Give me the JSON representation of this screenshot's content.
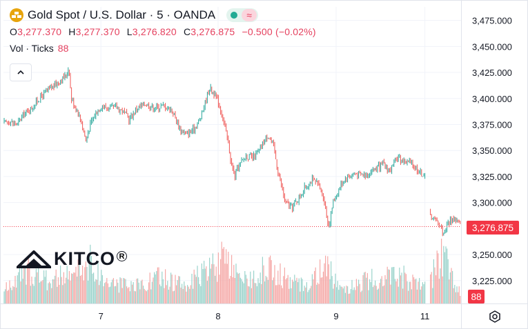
{
  "header": {
    "title": "Gold Spot / U.S. Dollar · 5 · OANDA",
    "ohlc": [
      {
        "key": "O",
        "value": "3,277.370"
      },
      {
        "key": "H",
        "value": "3,277.370"
      },
      {
        "key": "L",
        "value": "3,276.820"
      },
      {
        "key": "C",
        "value": "3,276.875"
      }
    ],
    "change": "−0.500 (−0.02%)",
    "volume_label": "Vol · Ticks",
    "volume_value": "88"
  },
  "watermark": {
    "text": "KITCO",
    "mark": "R"
  },
  "colors": {
    "up": "#26a69a",
    "down": "#ef5350",
    "last_price_tag": "#f23645",
    "gold_icon": "#e7a40d"
  },
  "icons": [
    "gold-bars-icon",
    "market-open-dot-icon",
    "wave-icon",
    "chevron-up-icon",
    "settings-icon"
  ],
  "chart_data": {
    "type": "line",
    "title": "Gold Spot / U.S. Dollar · 5 · OANDA",
    "style": "candlestick with tick-volume histogram",
    "xlabel": "",
    "ylabel": "",
    "ylim": [
      3203,
      3488
    ],
    "y_ticks": [
      "3,475.000",
      "3,450.000",
      "3,425.000",
      "3,400.000",
      "3,375.000",
      "3,350.000",
      "3,325.000",
      "3,300.000",
      "3,250.000",
      "3,225.000"
    ],
    "y_tick_values": [
      3475,
      3450,
      3425,
      3400,
      3375,
      3350,
      3325,
      3300,
      3250,
      3225
    ],
    "x_ticks": [
      {
        "label": "7",
        "pos": 0.213
      },
      {
        "label": "8",
        "pos": 0.469
      },
      {
        "label": "9",
        "pos": 0.727
      },
      {
        "label": "11",
        "pos": 0.921
      }
    ],
    "last_price": 3276.875,
    "last_price_label": "3,276.875",
    "last_volume_label": "88",
    "grid": true,
    "price_path": [
      [
        0.0,
        3376
      ],
      [
        0.015,
        3378
      ],
      [
        0.03,
        3375
      ],
      [
        0.045,
        3385
      ],
      [
        0.06,
        3390
      ],
      [
        0.075,
        3398
      ],
      [
        0.09,
        3405
      ],
      [
        0.105,
        3410
      ],
      [
        0.12,
        3416
      ],
      [
        0.135,
        3421
      ],
      [
        0.143,
        3430
      ],
      [
        0.148,
        3400
      ],
      [
        0.16,
        3390
      ],
      [
        0.17,
        3378
      ],
      [
        0.18,
        3360
      ],
      [
        0.19,
        3375
      ],
      [
        0.2,
        3385
      ],
      [
        0.215,
        3393
      ],
      [
        0.23,
        3390
      ],
      [
        0.245,
        3392
      ],
      [
        0.26,
        3388
      ],
      [
        0.275,
        3380
      ],
      [
        0.29,
        3390
      ],
      [
        0.31,
        3395
      ],
      [
        0.33,
        3391
      ],
      [
        0.35,
        3393
      ],
      [
        0.37,
        3388
      ],
      [
        0.385,
        3371
      ],
      [
        0.4,
        3366
      ],
      [
        0.415,
        3370
      ],
      [
        0.43,
        3380
      ],
      [
        0.44,
        3395
      ],
      [
        0.45,
        3410
      ],
      [
        0.46,
        3405
      ],
      [
        0.47,
        3396
      ],
      [
        0.48,
        3380
      ],
      [
        0.49,
        3360
      ],
      [
        0.497,
        3340
      ],
      [
        0.505,
        3325
      ],
      [
        0.515,
        3335
      ],
      [
        0.53,
        3345
      ],
      [
        0.545,
        3343
      ],
      [
        0.56,
        3350
      ],
      [
        0.57,
        3360
      ],
      [
        0.578,
        3365
      ],
      [
        0.59,
        3355
      ],
      [
        0.6,
        3330
      ],
      [
        0.608,
        3315
      ],
      [
        0.616,
        3300
      ],
      [
        0.63,
        3295
      ],
      [
        0.645,
        3304
      ],
      [
        0.66,
        3315
      ],
      [
        0.675,
        3322
      ],
      [
        0.688,
        3317
      ],
      [
        0.7,
        3305
      ],
      [
        0.707,
        3285
      ],
      [
        0.712,
        3278
      ],
      [
        0.72,
        3300
      ],
      [
        0.735,
        3315
      ],
      [
        0.75,
        3325
      ],
      [
        0.77,
        3328
      ],
      [
        0.79,
        3326
      ],
      [
        0.81,
        3332
      ],
      [
        0.83,
        3337
      ],
      [
        0.845,
        3330
      ],
      [
        0.86,
        3343
      ],
      [
        0.875,
        3340
      ],
      [
        0.89,
        3338
      ],
      [
        0.9,
        3334
      ],
      [
        0.91,
        3329
      ],
      [
        0.92,
        3326
      ],
      [
        0.933,
        3288
      ],
      [
        0.945,
        3283
      ],
      [
        0.955,
        3278
      ],
      [
        0.962,
        3270
      ],
      [
        0.97,
        3280
      ],
      [
        0.985,
        3285
      ],
      [
        1.0,
        3277
      ]
    ],
    "gap_after_index": 70,
    "volume_profile": [
      [
        0.0,
        0.25
      ],
      [
        0.06,
        0.65
      ],
      [
        0.09,
        0.45
      ],
      [
        0.15,
        0.55
      ],
      [
        0.19,
        0.8
      ],
      [
        0.22,
        0.45
      ],
      [
        0.28,
        0.3
      ],
      [
        0.34,
        0.5
      ],
      [
        0.4,
        0.35
      ],
      [
        0.44,
        0.6
      ],
      [
        0.48,
        0.85
      ],
      [
        0.52,
        0.4
      ],
      [
        0.58,
        0.7
      ],
      [
        0.62,
        0.45
      ],
      [
        0.66,
        0.35
      ],
      [
        0.7,
        0.7
      ],
      [
        0.75,
        0.3
      ],
      [
        0.8,
        0.45
      ],
      [
        0.86,
        0.6
      ],
      [
        0.9,
        0.35
      ],
      [
        0.93,
        0.4
      ],
      [
        0.96,
        1.0
      ],
      [
        1.0,
        0.15
      ]
    ]
  }
}
